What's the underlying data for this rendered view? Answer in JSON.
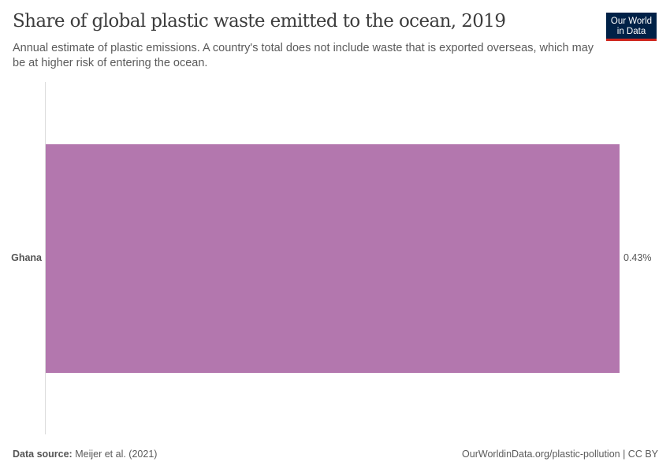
{
  "header": {
    "title": "Share of global plastic waste emitted to the ocean, 2019",
    "subtitle": "Annual estimate of plastic emissions. A country's total does not include waste that is exported overseas, which may be at higher risk of entering the ocean."
  },
  "logo": {
    "line1": "Our World",
    "line2": "in Data",
    "bg_color": "#002147",
    "accent_color": "#ce261e"
  },
  "footer": {
    "source_label": "Data source:",
    "source_value": "Meijer et al. (2021)",
    "link": "OurWorldinData.org/plastic-pollution | CC BY"
  },
  "chart_data": {
    "type": "bar",
    "orientation": "horizontal",
    "title": "Share of global plastic waste emitted to the ocean, 2019",
    "subtitle": "Annual estimate of plastic emissions. A country's total does not include waste that is exported overseas, which may be at higher risk of entering the ocean.",
    "categories": [
      "Ghana"
    ],
    "values": [
      0.43
    ],
    "value_labels": [
      "0.43%"
    ],
    "unit": "%",
    "bar_color": "#b377ae",
    "xlabel": "",
    "ylabel": "",
    "grid": false,
    "legend": null
  }
}
